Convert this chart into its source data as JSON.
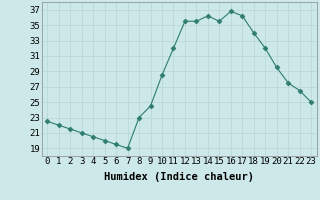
{
  "title": "",
  "xlabel": "Humidex (Indice chaleur)",
  "x": [
    0,
    1,
    2,
    3,
    4,
    5,
    6,
    7,
    8,
    9,
    10,
    11,
    12,
    13,
    14,
    15,
    16,
    17,
    18,
    19,
    20,
    21,
    22,
    23
  ],
  "y": [
    22.5,
    22.0,
    21.5,
    21.0,
    20.5,
    20.0,
    19.5,
    19.0,
    23.0,
    24.5,
    28.5,
    32.0,
    35.5,
    35.5,
    36.2,
    35.5,
    36.8,
    36.2,
    34.0,
    32.0,
    29.5,
    27.5,
    26.5,
    25.0
  ],
  "line_color": "#2e7d6e",
  "marker": "D",
  "marker_size": 2.5,
  "bg_color": "#cce8e8",
  "grid_color": "#b8d4d4",
  "ylim": [
    18,
    38
  ],
  "yticks": [
    19,
    21,
    23,
    25,
    27,
    29,
    31,
    33,
    35,
    37
  ],
  "xlim": [
    -0.5,
    23.5
  ],
  "axis_label_fontsize": 7.5,
  "tick_fontsize": 6.5
}
